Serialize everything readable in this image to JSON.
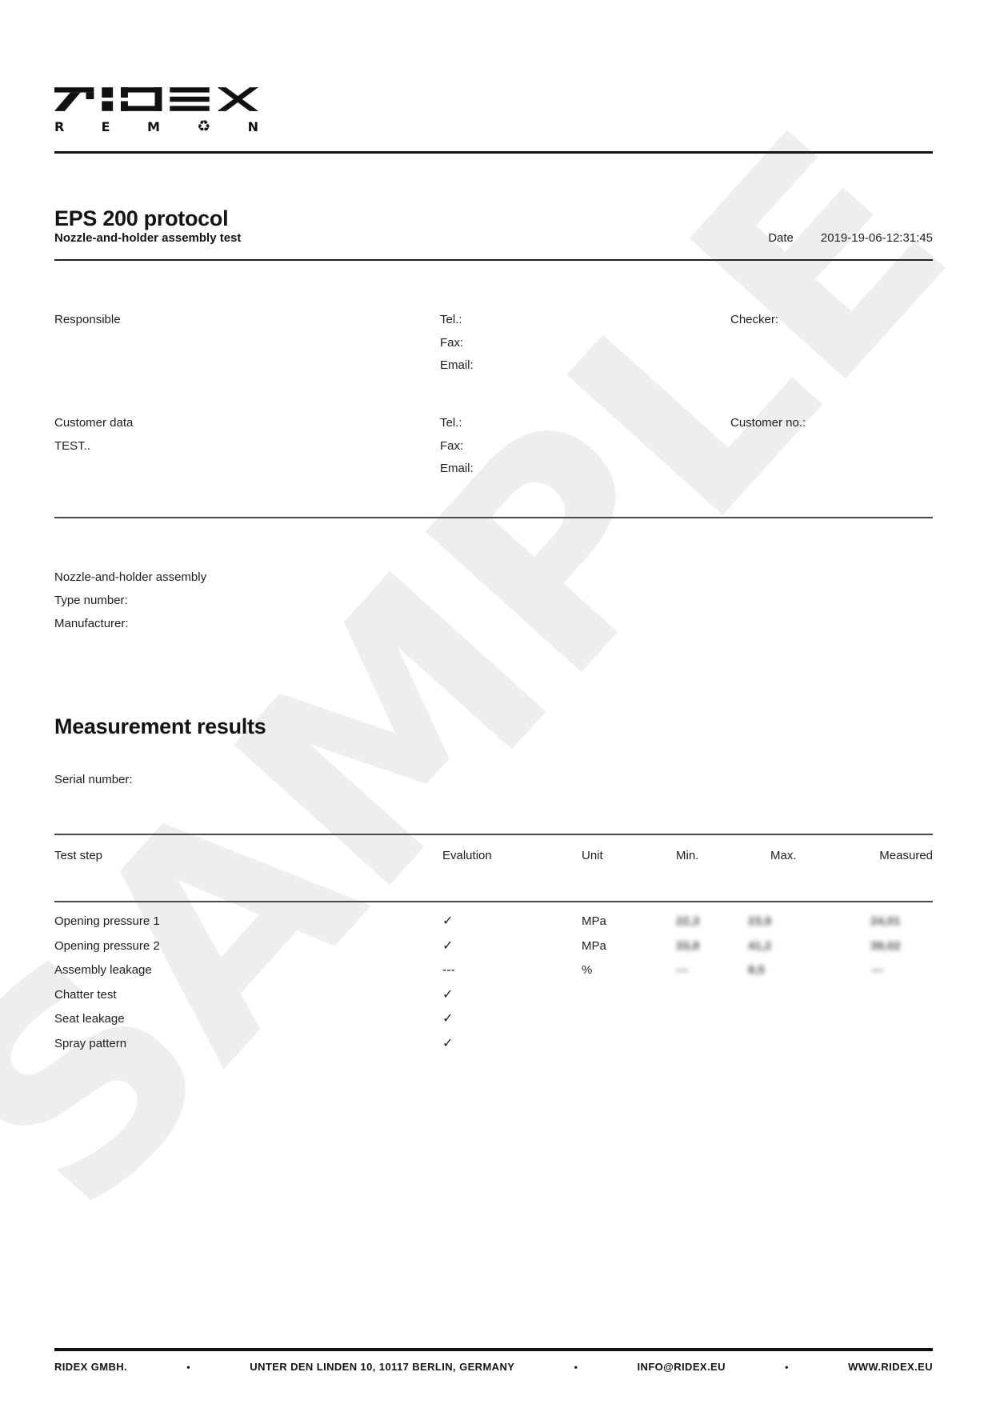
{
  "watermark": "SAMPLE",
  "logo": {
    "brand": "RIDEX",
    "sub_letters": [
      "R",
      "E",
      "M",
      "♻",
      "N"
    ]
  },
  "header": {
    "title": "EPS 200 protocol",
    "subtitle": "Nozzle-and-holder assembly test",
    "date_label": "Date",
    "date_value": "2019-19-06-12:31:45"
  },
  "contacts": {
    "responsible_label": "Responsible",
    "checker_label": "Checker:",
    "tel_label": "Tel.:",
    "fax_label": "Fax:",
    "email_label": "Email:",
    "customer_label": "Customer data",
    "customer_value": "TEST..",
    "customer_tel_label": "Tel.:",
    "customer_fax_label": "Fax:",
    "customer_email_label": "Email:",
    "customer_no_label": "Customer no.:"
  },
  "assembly": {
    "title": "Nozzle-and-holder assembly",
    "type_number_label": "Type number:",
    "manufacturer_label": "Manufacturer:"
  },
  "measurement": {
    "heading": "Measurement results",
    "serial_label": "Serial number:"
  },
  "table": {
    "headers": [
      "Test step",
      "Evalution",
      "Unit",
      "Min.",
      "Max.",
      "Measured"
    ],
    "rows": [
      {
        "step": "Opening pressure 1",
        "evaluation": "✓",
        "unit": "MPa",
        "min": "22,3",
        "max": "23,9",
        "measured": "24,01",
        "blurred": true
      },
      {
        "step": "Opening pressure 2",
        "evaluation": "✓",
        "unit": "MPa",
        "min": "33,8",
        "max": "41,2",
        "measured": "39,02",
        "blurred": true
      },
      {
        "step": "Assembly leakage",
        "evaluation": "---",
        "unit": "%",
        "min": "---",
        "max": "8,5",
        "measured": "---",
        "blurred": true
      },
      {
        "step": "Chatter test",
        "evaluation": "✓",
        "unit": "",
        "min": "",
        "max": "",
        "measured": "",
        "blurred": false
      },
      {
        "step": "Seat leakage",
        "evaluation": "✓",
        "unit": "",
        "min": "",
        "max": "",
        "measured": "",
        "blurred": false
      },
      {
        "step": "Spray pattern",
        "evaluation": "✓",
        "unit": "",
        "min": "",
        "max": "",
        "measured": "",
        "blurred": false
      }
    ]
  },
  "footer": {
    "separator": "•",
    "items": [
      "RIDEX GMBH.",
      "UNTER DEN LINDEN 10, 10117 BERLIN, GERMANY",
      "INFO@RIDEX.EU",
      "WWW.RIDEX.EU"
    ]
  }
}
